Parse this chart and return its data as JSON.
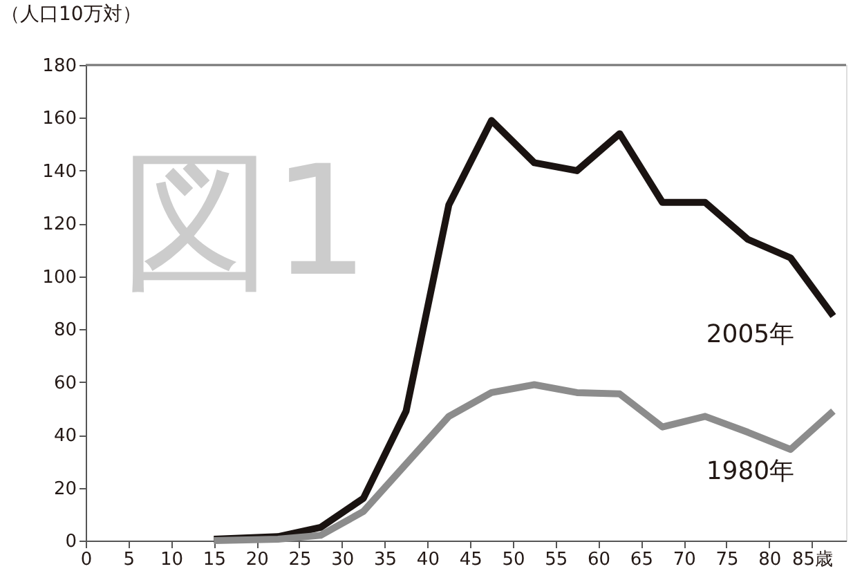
{
  "chart_data": {
    "type": "line",
    "ylabel": "（人口10万対）",
    "annotations": [
      "図1"
    ],
    "x": [
      15,
      22.5,
      27.5,
      32.5,
      37.5,
      42.5,
      47.5,
      52.5,
      57.5,
      62.5,
      67.5,
      72.5,
      77.5,
      82.5,
      87.5
    ],
    "series": [
      {
        "name": "2005年",
        "color": "#1a1311",
        "values": [
          0.5,
          1.5,
          5,
          16,
          49,
          127,
          159,
          143,
          140,
          154,
          128,
          128,
          114,
          107,
          85
        ]
      },
      {
        "name": "1980年",
        "color": "#8c8c8c",
        "values": [
          0,
          0.5,
          2,
          11,
          29,
          47,
          56,
          59,
          56,
          55.5,
          43,
          47,
          41,
          34.5,
          49
        ]
      }
    ],
    "xlim": [
      0,
      89
    ],
    "xticks": [
      0,
      5,
      10,
      15,
      20,
      25,
      30,
      35,
      40,
      45,
      50,
      55,
      60,
      65,
      70,
      75,
      80,
      {
        "value": 85,
        "label": "85歳"
      }
    ],
    "ylim": [
      0,
      180
    ],
    "yticks": [
      0,
      20,
      40,
      60,
      80,
      100,
      120,
      140,
      160,
      180
    ],
    "grid": false,
    "marker": "none",
    "line_style": "solid"
  }
}
